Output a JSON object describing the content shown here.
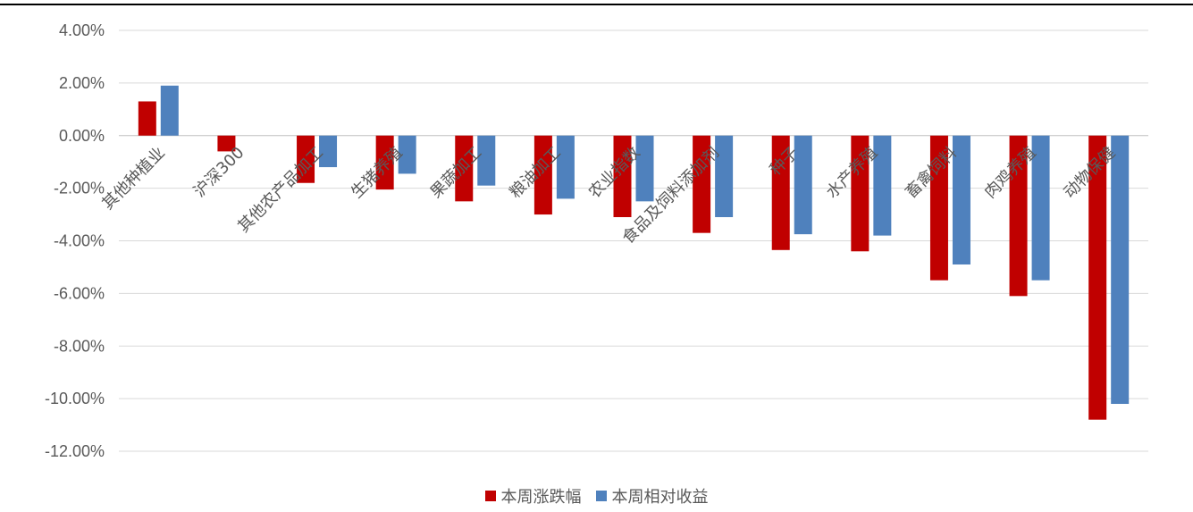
{
  "chart_data": {
    "type": "bar",
    "title": "",
    "xlabel": "",
    "ylabel": "",
    "ylim": [
      -12,
      4
    ],
    "yticks": [
      "4.00%",
      "2.00%",
      "0.00%",
      "-2.00%",
      "-4.00%",
      "-6.00%",
      "-8.00%",
      "-10.00%",
      "-12.00%"
    ],
    "ytick_values": [
      4,
      2,
      0,
      -2,
      -4,
      -6,
      -8,
      -10,
      -12
    ],
    "grid": true,
    "legend_position": "bottom",
    "categories": [
      "其他种植业",
      "沪深300",
      "其他农产品加工",
      "生猪养殖",
      "果蔬加工",
      "粮油加工",
      "农业指数",
      "食品及饲料添加剂",
      "种子",
      "水产养殖",
      "畜禽饲料",
      "肉鸡养殖",
      "动物保健"
    ],
    "series": [
      {
        "name": "本周涨跌幅",
        "color": "#C00000",
        "values": [
          1.3,
          -0.6,
          -1.8,
          -2.05,
          -2.5,
          -3.0,
          -3.1,
          -3.7,
          -4.35,
          -4.4,
          -5.5,
          -6.1,
          -10.8
        ]
      },
      {
        "name": "本周相对收益",
        "color": "#4F81BD",
        "values": [
          1.9,
          0.0,
          -1.2,
          -1.45,
          -1.9,
          -2.4,
          -2.5,
          -3.1,
          -3.75,
          -3.8,
          -4.9,
          -5.5,
          -10.2
        ]
      }
    ]
  }
}
